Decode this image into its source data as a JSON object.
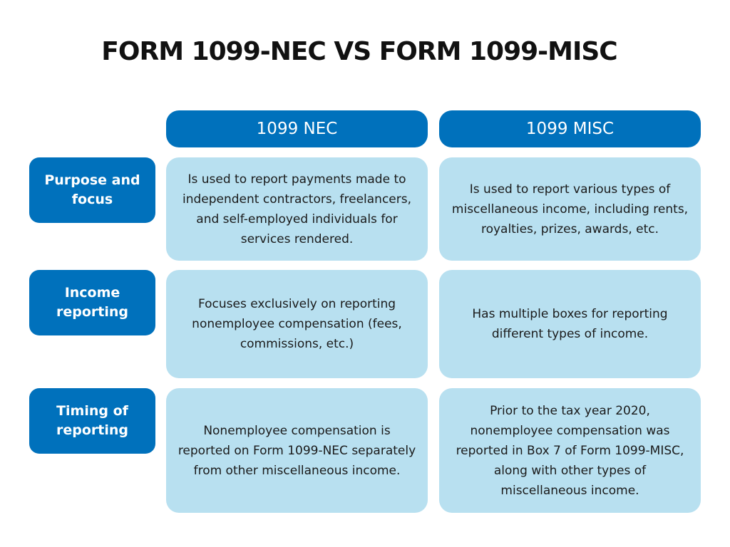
{
  "colors": {
    "header_bg": "#0071bc",
    "label_bg": "#0071bc",
    "cell_bg": "#b8e0f0",
    "title_text": "#111111"
  },
  "title": "FORM 1099-NEC VS FORM 1099-MISC",
  "columns": {
    "nec": "1099 NEC",
    "misc": "1099 MISC"
  },
  "rows": [
    {
      "label": "Purpose and focus",
      "nec": "Is used to report payments made to independent contractors, freelancers, and self-employed individuals for services rendered.",
      "misc": "Is used to report various types of miscellaneous income, including rents, royalties, prizes, awards, etc."
    },
    {
      "label": "Income reporting",
      "nec": "Focuses exclusively on reporting nonemployee compensation (fees, commissions, etc.)",
      "misc": "Has multiple boxes for reporting different types of income."
    },
    {
      "label": "Timing of reporting",
      "nec": "Nonemployee compensation is reported on Form 1099-NEC separately from other miscellaneous income.",
      "misc": "Prior to the tax year 2020, nonemployee compensation was reported in Box 7 of Form 1099-MISC, along with other types of miscellaneous income."
    }
  ]
}
